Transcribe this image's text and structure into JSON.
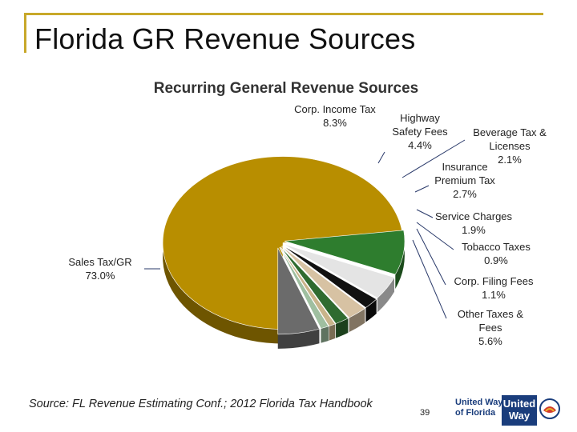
{
  "slide": {
    "title": "Florida GR Revenue Sources",
    "source": "Source: FL Revenue Estimating Conf.; 2012 Florida Tax Handbook",
    "page_number": "39"
  },
  "logo": {
    "text_line1": "United Way",
    "text_line2": "of Florida",
    "badge_line1": "United",
    "badge_line2": "Way",
    "colors": {
      "navy": "#1a3d7c",
      "red": "#d23a2a",
      "gold": "#e8b62c"
    }
  },
  "chart_data": {
    "type": "pie",
    "title": "Recurring General Revenue Sources",
    "slices": [
      {
        "label": "Sales Tax/GR",
        "value": 73.0,
        "color": "#b88e00"
      },
      {
        "label": "Corp. Income Tax",
        "value": 8.3,
        "color": "#2e7d2e"
      },
      {
        "label": "Highway Safety Fees",
        "value": 4.4,
        "color": "#e4e4e4"
      },
      {
        "label": "Beverage Tax & Licenses",
        "value": 2.1,
        "color": "#111111"
      },
      {
        "label": "Insurance Premium Tax",
        "value": 2.7,
        "color": "#d7c2a3"
      },
      {
        "label": "Service Charges",
        "value": 1.9,
        "color": "#2f6b30"
      },
      {
        "label": "Tobacco Taxes",
        "value": 0.9,
        "color": "#c9b48a"
      },
      {
        "label": "Corp. Filing Fees",
        "value": 1.1,
        "color": "#9fbfa0"
      },
      {
        "label": "Other Taxes & Fees",
        "value": 5.6,
        "color": "#6b6b6b"
      }
    ],
    "value_suffix": "%",
    "legend": "none (callout labels)"
  }
}
